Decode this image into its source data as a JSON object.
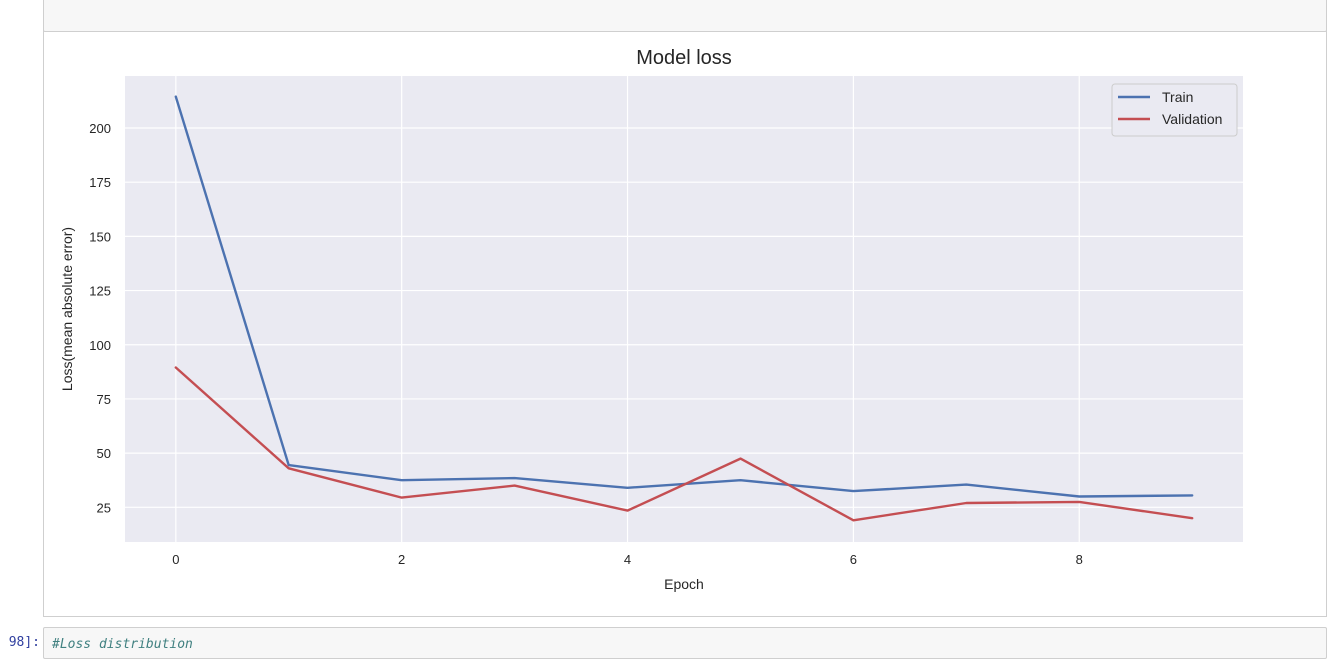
{
  "next_cell": {
    "prompt": "98]:",
    "code": "#Loss distribution"
  },
  "chart_data": {
    "type": "line",
    "title": "Model loss",
    "xlabel": "Epoch",
    "ylabel": "Loss(mean absolute error)",
    "x": [
      0,
      1,
      2,
      3,
      4,
      5,
      6,
      7,
      8,
      9
    ],
    "xticks": [
      0,
      2,
      4,
      6,
      8
    ],
    "yticks": [
      25,
      50,
      75,
      100,
      125,
      150,
      175,
      200
    ],
    "xlim": [
      -0.45,
      9.45
    ],
    "ylim": [
      9,
      224
    ],
    "grid": true,
    "legend_position": "top-right",
    "series": [
      {
        "name": "Train",
        "color": "#4c72b0",
        "values": [
          214.5,
          44.5,
          37.5,
          38.5,
          34.0,
          37.5,
          32.5,
          35.5,
          30.0,
          30.5
        ]
      },
      {
        "name": "Validation",
        "color": "#c44e52",
        "values": [
          89.5,
          43.0,
          29.5,
          35.0,
          23.5,
          47.5,
          19.0,
          27.0,
          27.5,
          20.0
        ]
      }
    ]
  }
}
